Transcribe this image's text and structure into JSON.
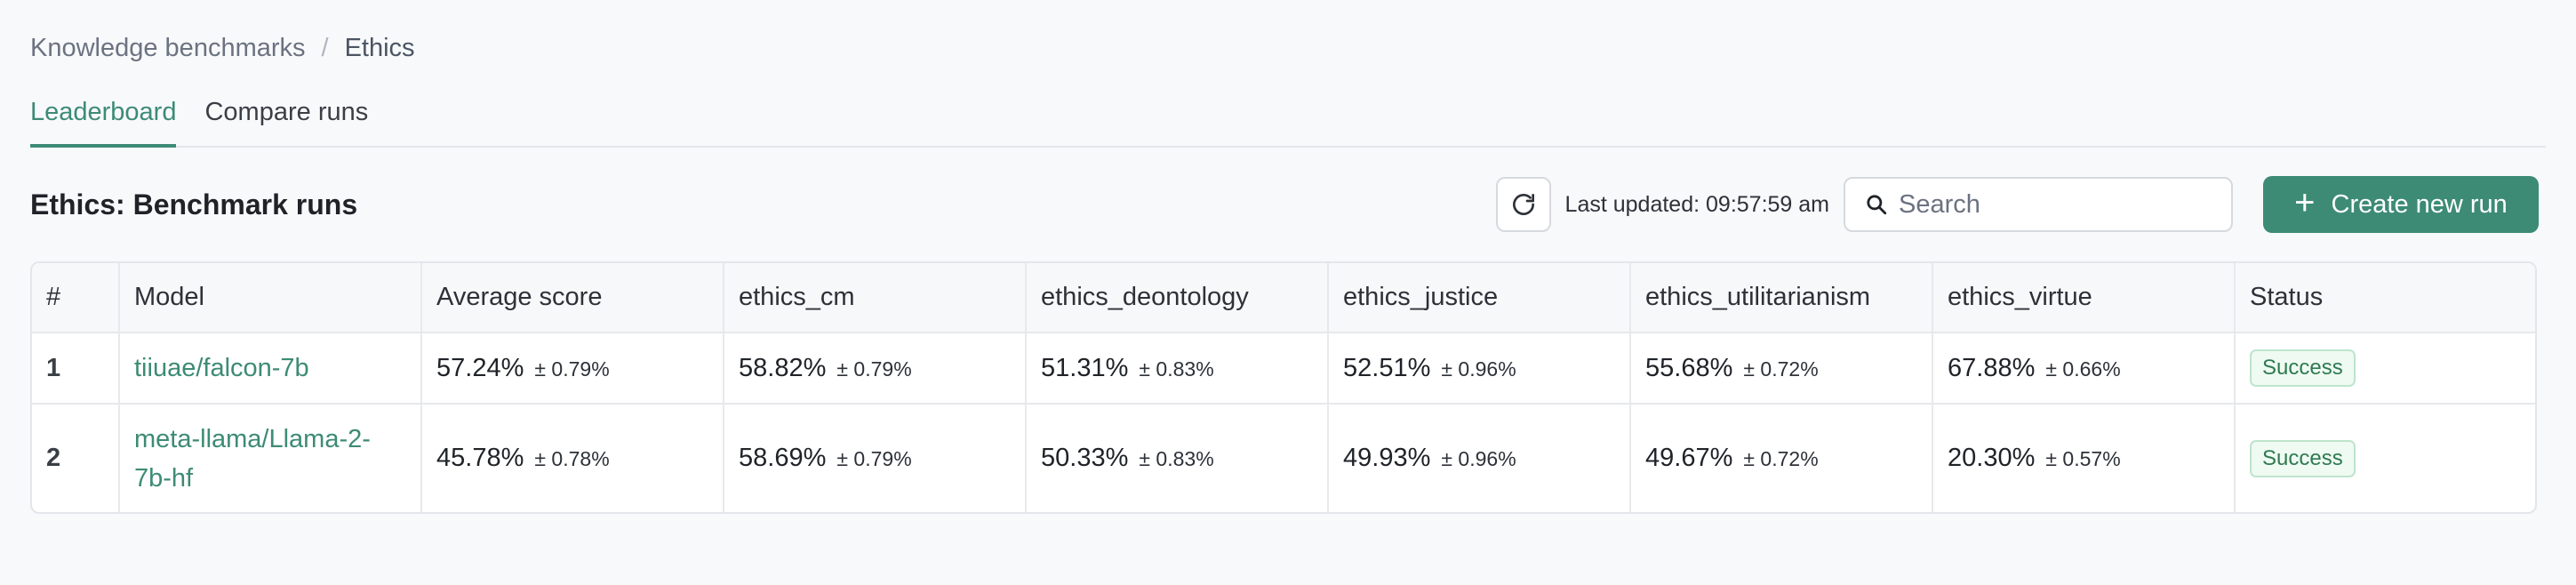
{
  "breadcrumb": {
    "parent": "Knowledge benchmarks",
    "separator": "/",
    "current": "Ethics"
  },
  "tabs": [
    {
      "label": "Leaderboard",
      "active": true
    },
    {
      "label": "Compare runs",
      "active": false
    }
  ],
  "page_title": "Ethics: Benchmark runs",
  "toolbar": {
    "refresh_icon": "refresh-icon",
    "last_updated": "Last updated: 09:57:59 am",
    "search_placeholder": "Search",
    "search_value": "",
    "create_label": "Create new run"
  },
  "table": {
    "headers": [
      "#",
      "Model",
      "Average score",
      "ethics_cm",
      "ethics_deontology",
      "ethics_justice",
      "ethics_utilitarianism",
      "ethics_virtue",
      "Status"
    ],
    "rows": [
      {
        "index": "1",
        "model": "tiiuae/falcon-7b",
        "scores": [
          {
            "value": "57.24%",
            "err": "± 0.79%"
          },
          {
            "value": "58.82%",
            "err": "± 0.79%"
          },
          {
            "value": "51.31%",
            "err": "± 0.83%"
          },
          {
            "value": "52.51%",
            "err": "± 0.96%"
          },
          {
            "value": "55.68%",
            "err": "± 0.72%"
          },
          {
            "value": "67.88%",
            "err": "± 0.66%"
          }
        ],
        "status": "Success"
      },
      {
        "index": "2",
        "model": "meta-llama/Llama-2-7b-hf",
        "scores": [
          {
            "value": "45.78%",
            "err": "± 0.78%"
          },
          {
            "value": "58.69%",
            "err": "± 0.79%"
          },
          {
            "value": "50.33%",
            "err": "± 0.83%"
          },
          {
            "value": "49.93%",
            "err": "± 0.96%"
          },
          {
            "value": "49.67%",
            "err": "± 0.72%"
          },
          {
            "value": "20.30%",
            "err": "± 0.57%"
          }
        ],
        "status": "Success"
      }
    ]
  },
  "colors": {
    "accent": "#3d8b74",
    "success_bg": "#eefaf2",
    "success_text": "#2f7a50"
  }
}
